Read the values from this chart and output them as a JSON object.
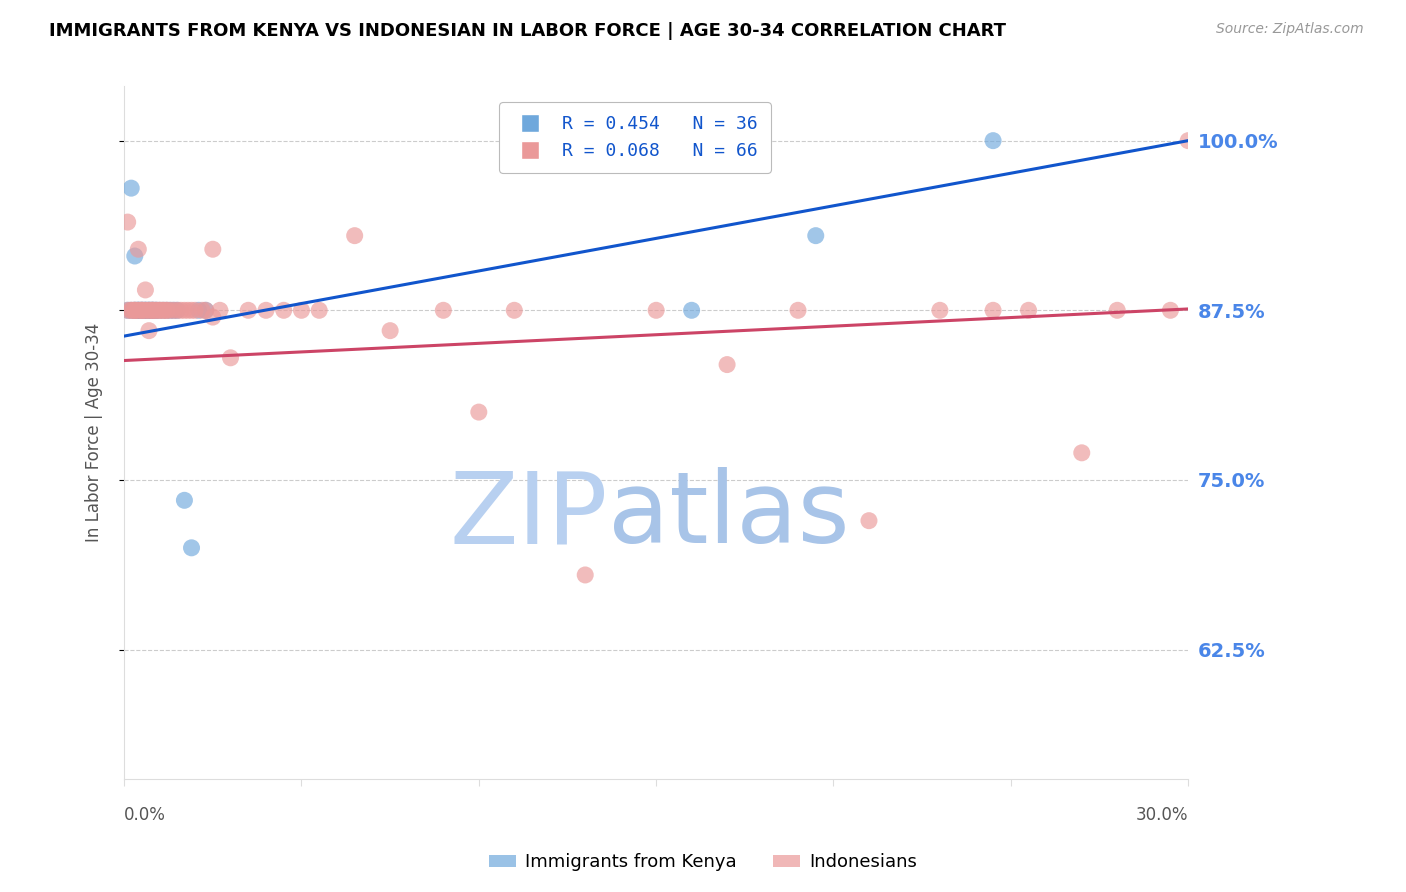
{
  "title": "IMMIGRANTS FROM KENYA VS INDONESIAN IN LABOR FORCE | AGE 30-34 CORRELATION CHART",
  "source": "Source: ZipAtlas.com",
  "ylabel": "In Labor Force | Age 30-34",
  "legend_entry1": "R = 0.454   N = 36",
  "legend_entry2": "R = 0.068   N = 66",
  "legend_label1": "Immigrants from Kenya",
  "legend_label2": "Indonesians",
  "blue_color": "#6fa8dc",
  "pink_color": "#ea9999",
  "blue_line_color": "#1155cc",
  "pink_line_color": "#cc4466",
  "watermark_zip_color": "#c9daf8",
  "watermark_atlas_color": "#a4c2f4",
  "title_color": "#000000",
  "right_axis_color": "#4a86e8",
  "source_color": "#999999",
  "background_color": "#ffffff",
  "grid_color": "#cccccc",
  "kenya_x": [
    0.001,
    0.002,
    0.002,
    0.003,
    0.003,
    0.003,
    0.004,
    0.004,
    0.004,
    0.005,
    0.005,
    0.005,
    0.006,
    0.006,
    0.006,
    0.007,
    0.007,
    0.007,
    0.008,
    0.008,
    0.008,
    0.009,
    0.009,
    0.01,
    0.011,
    0.012,
    0.013,
    0.014,
    0.015,
    0.017,
    0.019,
    0.021,
    0.023,
    0.16,
    0.195,
    0.245
  ],
  "kenya_y": [
    0.875,
    0.965,
    0.875,
    0.875,
    0.915,
    0.875,
    0.875,
    0.875,
    0.875,
    0.875,
    0.875,
    0.875,
    0.875,
    0.875,
    0.875,
    0.875,
    0.875,
    0.875,
    0.875,
    0.875,
    0.875,
    0.875,
    0.875,
    0.875,
    0.875,
    0.875,
    0.875,
    0.875,
    0.875,
    0.735,
    0.7,
    0.875,
    0.875,
    0.875,
    0.93,
    1.0
  ],
  "indonesian_x": [
    0.001,
    0.001,
    0.002,
    0.002,
    0.003,
    0.003,
    0.003,
    0.004,
    0.004,
    0.004,
    0.005,
    0.005,
    0.005,
    0.006,
    0.006,
    0.006,
    0.007,
    0.007,
    0.007,
    0.008,
    0.008,
    0.008,
    0.009,
    0.009,
    0.01,
    0.01,
    0.011,
    0.011,
    0.012,
    0.012,
    0.013,
    0.014,
    0.015,
    0.016,
    0.017,
    0.018,
    0.019,
    0.02,
    0.022,
    0.023,
    0.025,
    0.025,
    0.027,
    0.03,
    0.035,
    0.04,
    0.045,
    0.05,
    0.055,
    0.065,
    0.075,
    0.09,
    0.1,
    0.11,
    0.13,
    0.15,
    0.17,
    0.19,
    0.21,
    0.23,
    0.245,
    0.255,
    0.27,
    0.28,
    0.295,
    0.3
  ],
  "indonesian_y": [
    0.875,
    0.94,
    0.875,
    0.875,
    0.875,
    0.875,
    0.875,
    0.875,
    0.875,
    0.92,
    0.875,
    0.875,
    0.875,
    0.875,
    0.875,
    0.89,
    0.875,
    0.875,
    0.86,
    0.875,
    0.875,
    0.875,
    0.875,
    0.875,
    0.875,
    0.875,
    0.875,
    0.875,
    0.875,
    0.875,
    0.875,
    0.875,
    0.875,
    0.875,
    0.875,
    0.875,
    0.875,
    0.875,
    0.875,
    0.875,
    0.92,
    0.87,
    0.875,
    0.84,
    0.875,
    0.875,
    0.875,
    0.875,
    0.875,
    0.93,
    0.86,
    0.875,
    0.8,
    0.875,
    0.68,
    0.875,
    0.835,
    0.875,
    0.72,
    0.875,
    0.875,
    0.875,
    0.77,
    0.875,
    0.875,
    1.0
  ],
  "xlim": [
    0.0,
    0.3
  ],
  "ylim": [
    0.53,
    1.04
  ],
  "kenya_trend": [
    0.856,
    1.0
  ],
  "indo_trend": [
    0.838,
    0.876
  ],
  "trend_x": [
    0.0,
    0.3
  ]
}
